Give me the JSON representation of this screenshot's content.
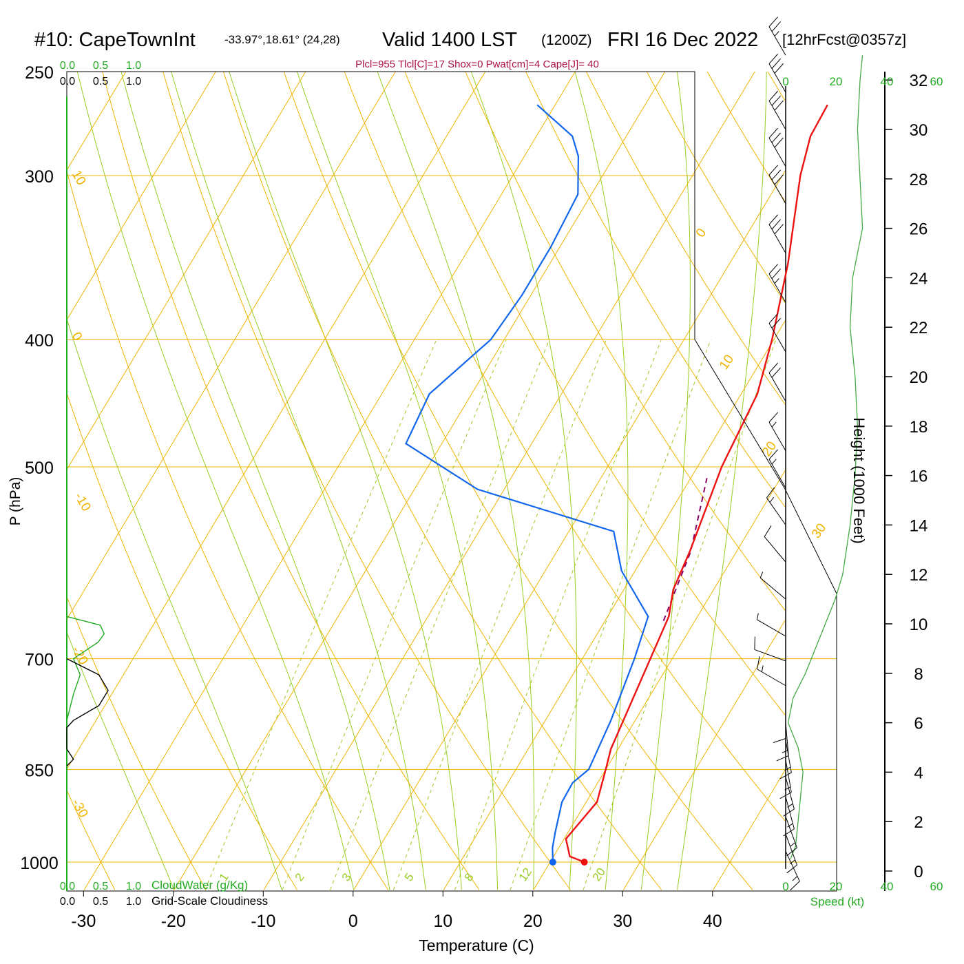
{
  "header": {
    "station": "#10: CapeTownInt",
    "coords": "-33.97°,18.61° (24,28)",
    "valid_a": "Valid 1400 LST",
    "valid_b": "(1200Z)",
    "valid_c": "FRI 16 Dec 2022",
    "forecast": "[12hrFcst@0357z]",
    "indices": "Plcl=955 Tlcl[C]=17 Shox=0 Pwat[cm]=4 Cape[J]= 40"
  },
  "colors": {
    "temperature": "#ee1111",
    "dewpoint": "#1166ee",
    "parcel": "#880066",
    "isotherm": "#f0b400",
    "dry_adiabat": "#f0b400",
    "moist_adiabat": "#99cc22",
    "mixing_ratio": "#99cc22",
    "cloudwater": "#22aa22",
    "cloudiness": "#000000",
    "wind_speed": "#44aa44",
    "title_red": "#aa1144"
  },
  "chart_data": {
    "type": "line",
    "title": "#10: CapeTownInt",
    "xlabel": "Temperature (C)",
    "ylabel": "P (hPa)",
    "y2label": "Height (1000 Feet)",
    "x_ticks": [
      -30,
      -20,
      -10,
      0,
      10,
      20,
      30,
      40
    ],
    "p_ticks": [
      250,
      300,
      400,
      500,
      700,
      850,
      1000
    ],
    "height_ticks": [
      0,
      2,
      4,
      6,
      8,
      10,
      12,
      14,
      16,
      18,
      20,
      22,
      24,
      26,
      28,
      30,
      32
    ],
    "isotherm_labels": [
      "10",
      "0",
      "-10",
      "-20",
      "-30",
      "0",
      "10",
      "20",
      "30"
    ],
    "mixing_ratio_labels": [
      "1",
      "2",
      "3",
      "5",
      "8",
      "12",
      "20"
    ],
    "cloud_scale_top_green": [
      "0.0",
      "0.5",
      "1.0"
    ],
    "cloud_scale_top_black": [
      "0.0",
      "0.5",
      "1.0"
    ],
    "cloud_scale_bottom_green": [
      "0.0",
      "0.5",
      "1.0"
    ],
    "cloud_scale_bottom_black": [
      "0.0",
      "0.5",
      "1.0"
    ],
    "cloudwater_label": "CloudWater (g/Kg)",
    "cloudiness_label": "Grid-Scale Cloudiness",
    "speed_ticks_top": [
      "0",
      "20",
      "40",
      "60"
    ],
    "speed_ticks_bottom": [
      "0",
      "20",
      "40",
      "60"
    ],
    "speed_label": "Speed (kt)",
    "series": [
      {
        "name": "Temperature",
        "points": [
          {
            "p": 1000,
            "t": 23.8
          },
          {
            "p": 990,
            "t": 21.8
          },
          {
            "p": 960,
            "t": 20.2
          },
          {
            "p": 900,
            "t": 21.2
          },
          {
            "p": 850,
            "t": 20.0
          },
          {
            "p": 820,
            "t": 19.2
          },
          {
            "p": 650,
            "t": 16.8
          },
          {
            "p": 620,
            "t": 15.5
          },
          {
            "p": 580,
            "t": 14.8
          },
          {
            "p": 500,
            "t": 12.7
          },
          {
            "p": 440,
            "t": 11.8
          },
          {
            "p": 400,
            "t": 9.8
          },
          {
            "p": 350,
            "t": 6.5
          },
          {
            "p": 300,
            "t": 2.0
          },
          {
            "p": 280,
            "t": 0.5
          },
          {
            "p": 265,
            "t": 0.3
          }
        ]
      },
      {
        "name": "Dewpoint",
        "points": [
          {
            "p": 1000,
            "t": 20.3
          },
          {
            "p": 975,
            "t": 19.3
          },
          {
            "p": 950,
            "t": 18.6
          },
          {
            "p": 900,
            "t": 17.3
          },
          {
            "p": 870,
            "t": 17.2
          },
          {
            "p": 850,
            "t": 18.1
          },
          {
            "p": 780,
            "t": 17.3
          },
          {
            "p": 700,
            "t": 15.8
          },
          {
            "p": 650,
            "t": 14.5
          },
          {
            "p": 600,
            "t": 8.5
          },
          {
            "p": 560,
            "t": 5.0
          },
          {
            "p": 520,
            "t": -13.0
          },
          {
            "p": 480,
            "t": -24.0
          },
          {
            "p": 440,
            "t": -24.7
          },
          {
            "p": 400,
            "t": -21.5
          },
          {
            "p": 370,
            "t": -21.0
          },
          {
            "p": 340,
            "t": -21.0
          },
          {
            "p": 310,
            "t": -21.5
          },
          {
            "p": 290,
            "t": -24.0
          },
          {
            "p": 280,
            "t": -26.0
          },
          {
            "p": 265,
            "t": -32.0
          }
        ]
      },
      {
        "name": "Parcel",
        "points": [
          {
            "p": 655,
            "t": 16.5
          },
          {
            "p": 580,
            "t": 14.9
          },
          {
            "p": 510,
            "t": 11.8
          }
        ]
      }
    ],
    "surface": {
      "temperature": 23.8,
      "dewpoint": 20.3
    },
    "cloudwater_profile": [
      {
        "p": 650,
        "v": 0.0
      },
      {
        "p": 660,
        "v": 0.5
      },
      {
        "p": 670,
        "v": 0.56
      },
      {
        "p": 680,
        "v": 0.47
      },
      {
        "p": 700,
        "v": 0.1
      },
      {
        "p": 720,
        "v": 0.2
      },
      {
        "p": 745,
        "v": 0.1
      },
      {
        "p": 780,
        "v": 0.0
      }
    ],
    "cloudiness_profile": [
      {
        "p": 700,
        "v": 0.0
      },
      {
        "p": 720,
        "v": 0.48
      },
      {
        "p": 740,
        "v": 0.62
      },
      {
        "p": 760,
        "v": 0.48
      },
      {
        "p": 780,
        "v": 0.1
      },
      {
        "p": 790,
        "v": 0.0
      },
      {
        "p": 820,
        "v": 0.0
      },
      {
        "p": 835,
        "v": 0.1
      },
      {
        "p": 845,
        "v": 0.0
      }
    ],
    "wind_speed_profile": [
      {
        "h": 0.5,
        "s": 2
      },
      {
        "h": 1.0,
        "s": 4
      },
      {
        "h": 2.0,
        "s": 5
      },
      {
        "h": 4.0,
        "s": 7
      },
      {
        "h": 5.0,
        "s": 5
      },
      {
        "h": 6.0,
        "s": 1
      },
      {
        "h": 7.0,
        "s": 3
      },
      {
        "h": 8.0,
        "s": 8
      },
      {
        "h": 9.0,
        "s": 12
      },
      {
        "h": 10.0,
        "s": 16
      },
      {
        "h": 11.0,
        "s": 20
      },
      {
        "h": 12.0,
        "s": 23
      },
      {
        "h": 14.0,
        "s": 26
      },
      {
        "h": 16.0,
        "s": 28
      },
      {
        "h": 18.0,
        "s": 29
      },
      {
        "h": 20.0,
        "s": 28
      },
      {
        "h": 22.0,
        "s": 26
      },
      {
        "h": 24.0,
        "s": 27
      },
      {
        "h": 26.0,
        "s": 31
      },
      {
        "h": 28.0,
        "s": 30
      },
      {
        "h": 30.0,
        "s": 29
      },
      {
        "h": 32.0,
        "s": 30
      },
      {
        "h": 33.0,
        "s": 31
      }
    ],
    "wind_barbs": [
      {
        "h": 0.8,
        "dir": 155,
        "spd": 15
      },
      {
        "h": 1.5,
        "dir": 160,
        "spd": 15
      },
      {
        "h": 2.2,
        "dir": 160,
        "spd": 15
      },
      {
        "h": 3.0,
        "dir": 165,
        "spd": 15
      },
      {
        "h": 3.8,
        "dir": 165,
        "spd": 15
      },
      {
        "h": 4.5,
        "dir": 170,
        "spd": 15
      },
      {
        "h": 5.3,
        "dir": 170,
        "spd": 15
      },
      {
        "h": 6.0,
        "dir": 175,
        "spd": 15
      },
      {
        "h": 6.7,
        "dir": 180,
        "spd": 10
      },
      {
        "h": 7.5,
        "dir": 300,
        "spd": 15
      },
      {
        "h": 8.5,
        "dir": 290,
        "spd": 10
      },
      {
        "h": 9.5,
        "dir": 300,
        "spd": 5
      },
      {
        "h": 11.0,
        "dir": 310,
        "spd": 5
      },
      {
        "h": 12.5,
        "dir": 320,
        "spd": 10
      },
      {
        "h": 14.0,
        "dir": 325,
        "spd": 15
      },
      {
        "h": 15.5,
        "dir": 330,
        "spd": 15
      },
      {
        "h": 17.0,
        "dir": 330,
        "spd": 15
      },
      {
        "h": 19.0,
        "dir": 330,
        "spd": 20
      },
      {
        "h": 21.0,
        "dir": 330,
        "spd": 20
      },
      {
        "h": 23.0,
        "dir": 330,
        "spd": 25
      },
      {
        "h": 25.0,
        "dir": 330,
        "spd": 30
      },
      {
        "h": 27.0,
        "dir": 330,
        "spd": 30
      },
      {
        "h": 28.5,
        "dir": 330,
        "spd": 30
      },
      {
        "h": 30.0,
        "dir": 330,
        "spd": 30
      },
      {
        "h": 31.5,
        "dir": 330,
        "spd": 30
      },
      {
        "h": 33.0,
        "dir": 330,
        "spd": 25
      }
    ]
  }
}
